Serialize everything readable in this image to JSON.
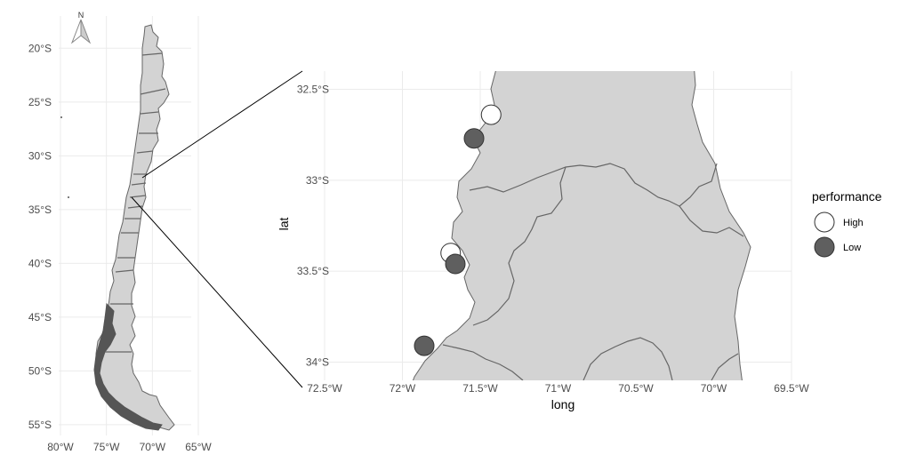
{
  "overview_map": {
    "north_label": "N",
    "lat_ticks": [
      {
        "label": "20°S",
        "lat": -20
      },
      {
        "label": "25°S",
        "lat": -25
      },
      {
        "label": "30°S",
        "lat": -30
      },
      {
        "label": "35°S",
        "lat": -35
      },
      {
        "label": "40°S",
        "lat": -40
      },
      {
        "label": "45°S",
        "lat": -45
      },
      {
        "label": "50°S",
        "lat": -50
      },
      {
        "label": "55°S",
        "lat": -55
      }
    ],
    "lon_ticks": [
      {
        "label": "80°W",
        "lon": -80
      },
      {
        "label": "75°W",
        "lon": -75
      },
      {
        "label": "70°W",
        "lon": -70
      },
      {
        "label": "65°W",
        "lon": -65
      }
    ],
    "lat_range": [
      -56,
      -17
    ],
    "lon_range": [
      -80,
      -65
    ]
  },
  "detail_map": {
    "x_label": "long",
    "y_label": "lat",
    "lat_range": [
      -34.1,
      -32.4
    ],
    "lon_range": [
      -72.5,
      -69.5
    ],
    "lat_ticks": [
      {
        "label": "32.5°S",
        "lat": -32.5
      },
      {
        "label": "33°S",
        "lat": -33.0
      },
      {
        "label": "33.5°S",
        "lat": -33.5
      },
      {
        "label": "34°S",
        "lat": -34.0
      }
    ],
    "lon_ticks": [
      {
        "label": "72.5°W",
        "lon": -72.5
      },
      {
        "label": "72°W",
        "lon": -72.0
      },
      {
        "label": "71.5°W",
        "lon": -71.5
      },
      {
        "label": "71°W",
        "lon": -71.0
      },
      {
        "label": "70.5°W",
        "lon": -70.5
      },
      {
        "label": "70°W",
        "lon": -70.0
      },
      {
        "label": "69.5°W",
        "lon": -69.5
      }
    ],
    "points": [
      {
        "lon": -71.43,
        "lat": -32.64,
        "performance": "High"
      },
      {
        "lon": -71.54,
        "lat": -32.77,
        "performance": "Low"
      },
      {
        "lon": -71.69,
        "lat": -33.4,
        "performance": "High"
      },
      {
        "lon": -71.66,
        "lat": -33.46,
        "performance": "Low"
      },
      {
        "lon": -71.86,
        "lat": -33.91,
        "performance": "Low"
      }
    ]
  },
  "legend": {
    "title": "performance",
    "items": [
      {
        "label": "High",
        "color": "#ffffff"
      },
      {
        "label": "Low",
        "color": "#5f5f5f"
      }
    ]
  },
  "colors": {
    "land": "#d3d3d3",
    "border": "#666666",
    "high_point": "#ffffff",
    "low_point": "#5f5f5f"
  }
}
